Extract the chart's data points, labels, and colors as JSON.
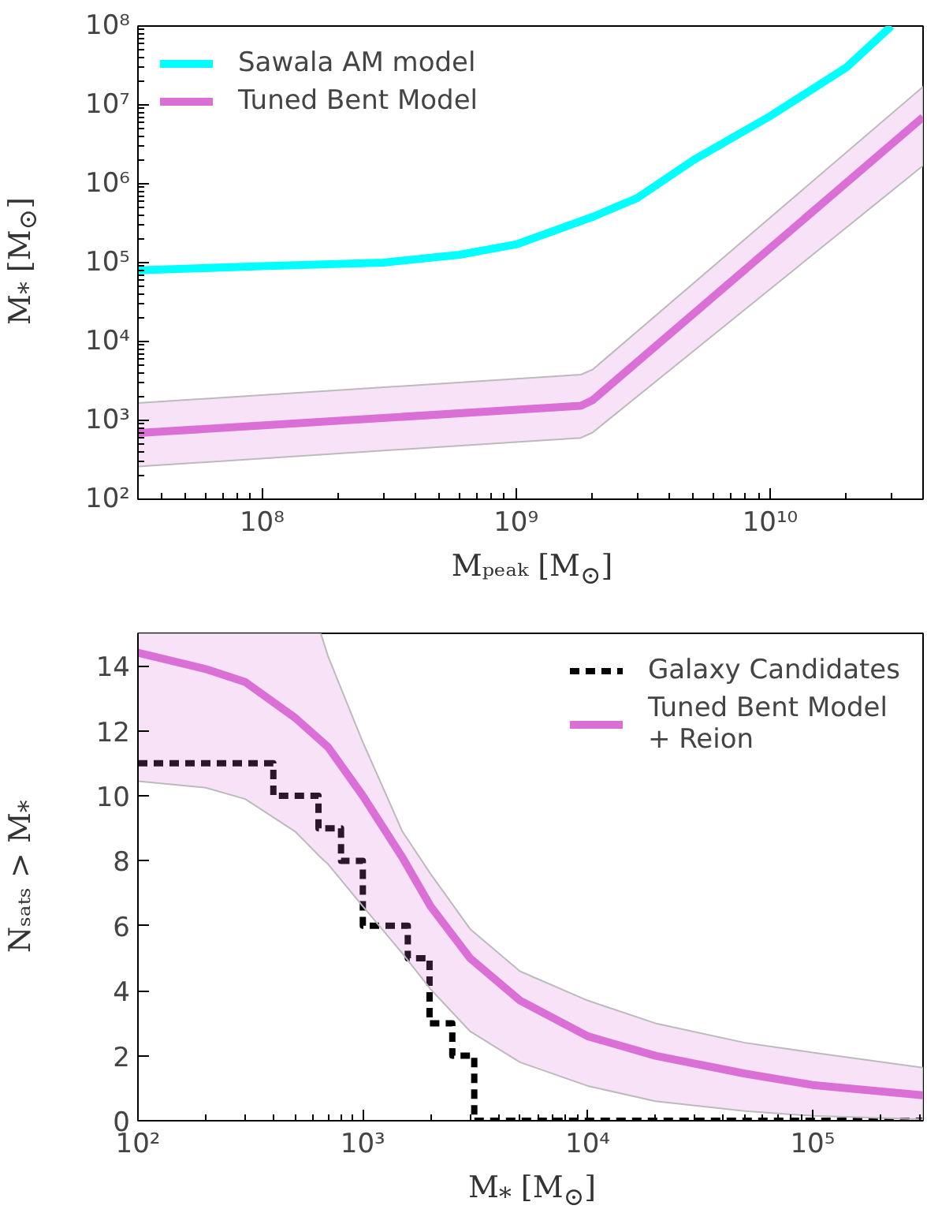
{
  "chart_data": [
    {
      "type": "line",
      "xlabel": "Mₚₑₐₖ [M$_{⊙}$]",
      "ylabel": "M$_{*}$ [M$_{⊙}$]",
      "log": "xy",
      "grid": false,
      "legend": "top left",
      "xlim": [
        32500000.0,
        40000000000.0
      ],
      "ylim": [
        100,
        100000000.0
      ],
      "xticks": [
        {
          "value": 100000000.0,
          "label": "10⁸"
        },
        {
          "value": 1000000000.0,
          "label": "10⁹"
        },
        {
          "value": 10000000000.0,
          "label": "10¹⁰"
        }
      ],
      "yticks": [
        {
          "value": 100,
          "label": "10²"
        },
        {
          "value": 1000,
          "label": "10³"
        },
        {
          "value": 10000,
          "label": "10⁴"
        },
        {
          "value": 100000,
          "label": "10⁵"
        },
        {
          "value": 1000000,
          "label": "10⁶"
        },
        {
          "value": 10000000,
          "label": "10⁷"
        },
        {
          "value": 100000000,
          "label": "10⁸"
        }
      ],
      "series": [
        {
          "name": "Sawala AM model",
          "color": "#00ffff",
          "x": [
            32500000.0,
            100000000.0,
            300000000.0,
            600000000.0,
            1000000000.0,
            2000000000.0,
            3000000000.0,
            5000000000.0,
            10000000000.0,
            20000000000.0,
            30000000000.0
          ],
          "values": [
            80000.0,
            90000.0,
            100000.0,
            126000.0,
            170000.0,
            380000.0,
            660000.0,
            2000000.0,
            7200000.0,
            30000000.0,
            100000000.0
          ]
        },
        {
          "name": "Tuned Bent Model",
          "color": "#da70d6",
          "x": [
            32500000.0,
            1800000000.0,
            2000000000.0,
            40000000000.0
          ],
          "values": [
            690,
            1530,
            1800,
            7000000.0
          ],
          "lower": [
            260,
            600,
            700,
            1700000.0
          ],
          "upper": [
            1660,
            3800,
            4400,
            17000000.0
          ]
        }
      ]
    },
    {
      "type": "line",
      "xlabel": "M$_{*}$ [M$_{⊙}$]",
      "ylabel": "Nₛₐₜₛ > M$_{*}$",
      "log": "x",
      "grid": false,
      "legend": "top right",
      "xlim": [
        100,
        310000.0
      ],
      "ylim": [
        0,
        15
      ],
      "xticks": [
        {
          "value": 100,
          "label": "10²"
        },
        {
          "value": 1000,
          "label": "10³"
        },
        {
          "value": 10000,
          "label": "10⁴"
        },
        {
          "value": 100000,
          "label": "10⁵"
        }
      ],
      "yticks": [
        0,
        2,
        4,
        6,
        8,
        10,
        12,
        14
      ],
      "series": [
        {
          "name": "Galaxy Candidates",
          "type": "step",
          "color": "#000000",
          "line_style": "dashed",
          "x": [
            100,
            400,
            635,
            800,
            1000,
            1585,
            1980,
            2500,
            3130,
            310000.0
          ],
          "values": [
            11,
            10,
            9,
            8,
            6,
            5,
            3,
            2,
            0,
            0
          ]
        },
        {
          "name": "Tuned Bent Model\n+ Reion",
          "color": "#da70d6",
          "x": [
            100,
            200,
            300,
            500,
            650,
            700,
            1000,
            1500,
            2000,
            3000,
            5000,
            10000,
            20000,
            50000,
            100000,
            310000
          ],
          "values": [
            14.4,
            13.9,
            13.5,
            12.4,
            11.7,
            11.5,
            10.0,
            8.1,
            6.6,
            5.0,
            3.7,
            2.6,
            2.0,
            1.45,
            1.1,
            0.78
          ],
          "lower": [
            10.45,
            10.25,
            9.9,
            8.9,
            8.1,
            7.9,
            6.6,
            5.15,
            4.05,
            2.75,
            1.8,
            1.07,
            0.6,
            0.3,
            0.15,
            0.04
          ],
          "upper": [
            15,
            15,
            15,
            15,
            15,
            14.3,
            11.65,
            8.9,
            7.6,
            5.9,
            4.6,
            3.7,
            3.0,
            2.4,
            2.1,
            1.63
          ]
        }
      ]
    }
  ]
}
